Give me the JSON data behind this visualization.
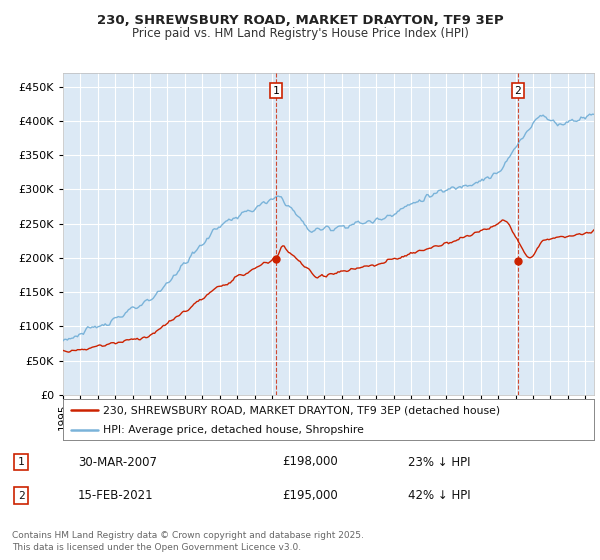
{
  "title": "230, SHREWSBURY ROAD, MARKET DRAYTON, TF9 3EP",
  "subtitle": "Price paid vs. HM Land Registry's House Price Index (HPI)",
  "background_color": "#ffffff",
  "plot_bg_color": "#dce9f5",
  "ylim": [
    0,
    470000
  ],
  "yticks": [
    0,
    50000,
    100000,
    150000,
    200000,
    250000,
    300000,
    350000,
    400000,
    450000
  ],
  "hpi_color": "#7ab3d9",
  "price_color": "#cc2200",
  "marker1_x": 2007.25,
  "marker2_x": 2021.12,
  "marker1_date": "30-MAR-2007",
  "marker1_price": "£198,000",
  "marker1_pct": "23% ↓ HPI",
  "marker2_date": "15-FEB-2021",
  "marker2_price": "£195,000",
  "marker2_pct": "42% ↓ HPI",
  "legend_line1": "230, SHREWSBURY ROAD, MARKET DRAYTON, TF9 3EP (detached house)",
  "legend_line2": "HPI: Average price, detached house, Shropshire",
  "footer": "Contains HM Land Registry data © Crown copyright and database right 2025.\nThis data is licensed under the Open Government Licence v3.0.",
  "xlim_start": 1995,
  "xlim_end": 2025.5
}
